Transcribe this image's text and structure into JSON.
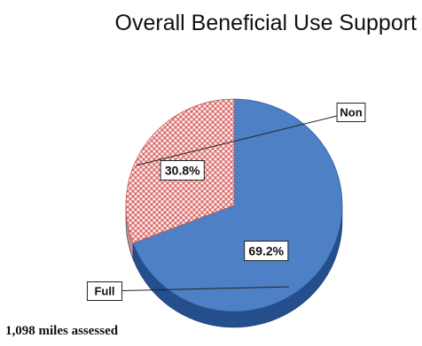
{
  "chart_data": {
    "type": "pie",
    "title": "Overall Beneficial Use Support",
    "slices": [
      {
        "label": "Full",
        "value": 69.2,
        "value_label": "69.2%",
        "color": "#4d80c4",
        "side_color": "#244e8c"
      },
      {
        "label": "Non",
        "value": 30.8,
        "value_label": "30.8%",
        "color": "#f2c4c4",
        "side_color": "#c98a8a",
        "pattern": "crosshatch-red"
      }
    ],
    "style": "3d-tilted"
  },
  "footnote": "1,098 miles assessed"
}
